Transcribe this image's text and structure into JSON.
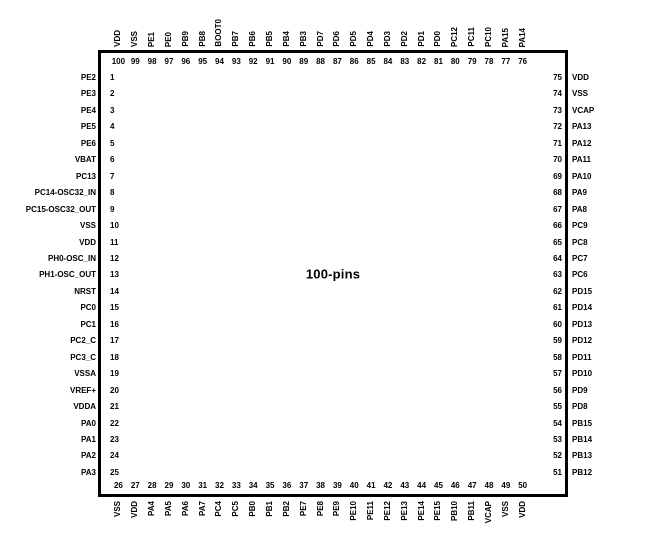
{
  "chip": {
    "title": "100-pins",
    "package_pin_count": 100
  },
  "colors": {
    "background": "#ffffff",
    "border": "#000000",
    "text": "#000000"
  },
  "sides": {
    "top": {
      "order": "left-to-right",
      "pins": [
        {
          "num": "100",
          "label": "VDD"
        },
        {
          "num": "99",
          "label": "VSS"
        },
        {
          "num": "98",
          "label": "PE1"
        },
        {
          "num": "97",
          "label": "PE0"
        },
        {
          "num": "96",
          "label": "PB9"
        },
        {
          "num": "95",
          "label": "PB8"
        },
        {
          "num": "94",
          "label": "BOOT0"
        },
        {
          "num": "93",
          "label": "PB7"
        },
        {
          "num": "92",
          "label": "PB6"
        },
        {
          "num": "91",
          "label": "PB5"
        },
        {
          "num": "90",
          "label": "PB4"
        },
        {
          "num": "89",
          "label": "PB3"
        },
        {
          "num": "88",
          "label": "PD7"
        },
        {
          "num": "87",
          "label": "PD6"
        },
        {
          "num": "86",
          "label": "PD5"
        },
        {
          "num": "85",
          "label": "PD4"
        },
        {
          "num": "84",
          "label": "PD3"
        },
        {
          "num": "83",
          "label": "PD2"
        },
        {
          "num": "82",
          "label": "PD1"
        },
        {
          "num": "81",
          "label": "PD0"
        },
        {
          "num": "80",
          "label": "PC12"
        },
        {
          "num": "79",
          "label": "PC11"
        },
        {
          "num": "78",
          "label": "PC10"
        },
        {
          "num": "77",
          "label": "PA15"
        },
        {
          "num": "76",
          "label": "PA14"
        }
      ]
    },
    "left": {
      "order": "top-to-bottom",
      "pins": [
        {
          "num": "1",
          "label": "PE2"
        },
        {
          "num": "2",
          "label": "PE3"
        },
        {
          "num": "3",
          "label": "PE4"
        },
        {
          "num": "4",
          "label": "PE5"
        },
        {
          "num": "5",
          "label": "PE6"
        },
        {
          "num": "6",
          "label": "VBAT"
        },
        {
          "num": "7",
          "label": "PC13"
        },
        {
          "num": "8",
          "label": "PC14-OSC32_IN"
        },
        {
          "num": "9",
          "label": "PC15-OSC32_OUT"
        },
        {
          "num": "10",
          "label": "VSS"
        },
        {
          "num": "11",
          "label": "VDD"
        },
        {
          "num": "12",
          "label": "PH0-OSC_IN"
        },
        {
          "num": "13",
          "label": "PH1-OSC_OUT"
        },
        {
          "num": "14",
          "label": "NRST"
        },
        {
          "num": "15",
          "label": "PC0"
        },
        {
          "num": "16",
          "label": "PC1"
        },
        {
          "num": "17",
          "label": "PC2_C"
        },
        {
          "num": "18",
          "label": "PC3_C"
        },
        {
          "num": "19",
          "label": "VSSA"
        },
        {
          "num": "20",
          "label": "VREF+"
        },
        {
          "num": "21",
          "label": "VDDA"
        },
        {
          "num": "22",
          "label": "PA0"
        },
        {
          "num": "23",
          "label": "PA1"
        },
        {
          "num": "24",
          "label": "PA2"
        },
        {
          "num": "25",
          "label": "PA3"
        }
      ]
    },
    "right": {
      "order": "top-to-bottom",
      "pins": [
        {
          "num": "75",
          "label": "VDD"
        },
        {
          "num": "74",
          "label": "VSS"
        },
        {
          "num": "73",
          "label": "VCAP"
        },
        {
          "num": "72",
          "label": "PA13"
        },
        {
          "num": "71",
          "label": "PA12"
        },
        {
          "num": "70",
          "label": "PA11"
        },
        {
          "num": "69",
          "label": "PA10"
        },
        {
          "num": "68",
          "label": "PA9"
        },
        {
          "num": "67",
          "label": "PA8"
        },
        {
          "num": "66",
          "label": "PC9"
        },
        {
          "num": "65",
          "label": "PC8"
        },
        {
          "num": "64",
          "label": "PC7"
        },
        {
          "num": "63",
          "label": "PC6"
        },
        {
          "num": "62",
          "label": "PD15"
        },
        {
          "num": "61",
          "label": "PD14"
        },
        {
          "num": "60",
          "label": "PD13"
        },
        {
          "num": "59",
          "label": "PD12"
        },
        {
          "num": "58",
          "label": "PD11"
        },
        {
          "num": "57",
          "label": "PD10"
        },
        {
          "num": "56",
          "label": "PD9"
        },
        {
          "num": "55",
          "label": "PD8"
        },
        {
          "num": "54",
          "label": "PB15"
        },
        {
          "num": "53",
          "label": "PB14"
        },
        {
          "num": "52",
          "label": "PB13"
        },
        {
          "num": "51",
          "label": "PB12"
        }
      ]
    },
    "bottom": {
      "order": "left-to-right",
      "pins": [
        {
          "num": "26",
          "label": "VSS"
        },
        {
          "num": "27",
          "label": "VDD"
        },
        {
          "num": "28",
          "label": "PA4"
        },
        {
          "num": "29",
          "label": "PA5"
        },
        {
          "num": "30",
          "label": "PA6"
        },
        {
          "num": "31",
          "label": "PA7"
        },
        {
          "num": "32",
          "label": "PC4"
        },
        {
          "num": "33",
          "label": "PC5"
        },
        {
          "num": "34",
          "label": "PB0"
        },
        {
          "num": "35",
          "label": "PB1"
        },
        {
          "num": "36",
          "label": "PB2"
        },
        {
          "num": "37",
          "label": "PE7"
        },
        {
          "num": "38",
          "label": "PE8"
        },
        {
          "num": "39",
          "label": "PE9"
        },
        {
          "num": "40",
          "label": "PE10"
        },
        {
          "num": "41",
          "label": "PE11"
        },
        {
          "num": "42",
          "label": "PE12"
        },
        {
          "num": "43",
          "label": "PE13"
        },
        {
          "num": "44",
          "label": "PE14"
        },
        {
          "num": "45",
          "label": "PE15"
        },
        {
          "num": "46",
          "label": "PB10"
        },
        {
          "num": "47",
          "label": "PB11"
        },
        {
          "num": "48",
          "label": "VCAP"
        },
        {
          "num": "49",
          "label": "VSS"
        },
        {
          "num": "50",
          "label": "VDD"
        }
      ]
    }
  }
}
